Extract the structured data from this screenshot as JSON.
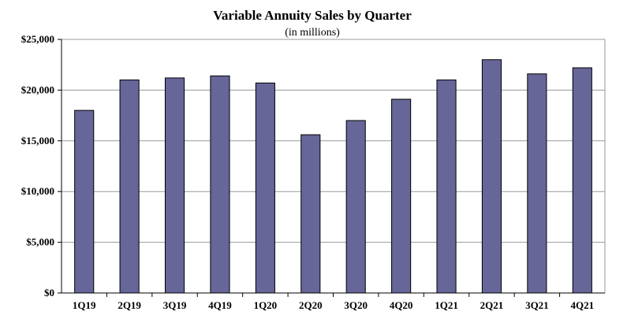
{
  "chart_data": {
    "type": "bar",
    "title": "Variable Annuity Sales by Quarter",
    "subtitle": "(in millions)",
    "categories": [
      "1Q19",
      "2Q19",
      "3Q19",
      "4Q19",
      "1Q20",
      "2Q20",
      "3Q20",
      "4Q20",
      "1Q21",
      "2Q21",
      "3Q21",
      "4Q21"
    ],
    "values": [
      18000,
      21000,
      21200,
      21400,
      20700,
      15600,
      17000,
      19100,
      21000,
      23000,
      21600,
      22200
    ],
    "ylim": [
      0,
      25000
    ],
    "yticks": [
      0,
      5000,
      10000,
      15000,
      20000,
      25000
    ],
    "ytick_labels": [
      "$0",
      "$5,000",
      "$10,000",
      "$15,000",
      "$20,000",
      "$25,000"
    ],
    "grid": true,
    "colors": {
      "bar": "#666699",
      "bar_border": "#000000",
      "grid": "#999999"
    }
  }
}
